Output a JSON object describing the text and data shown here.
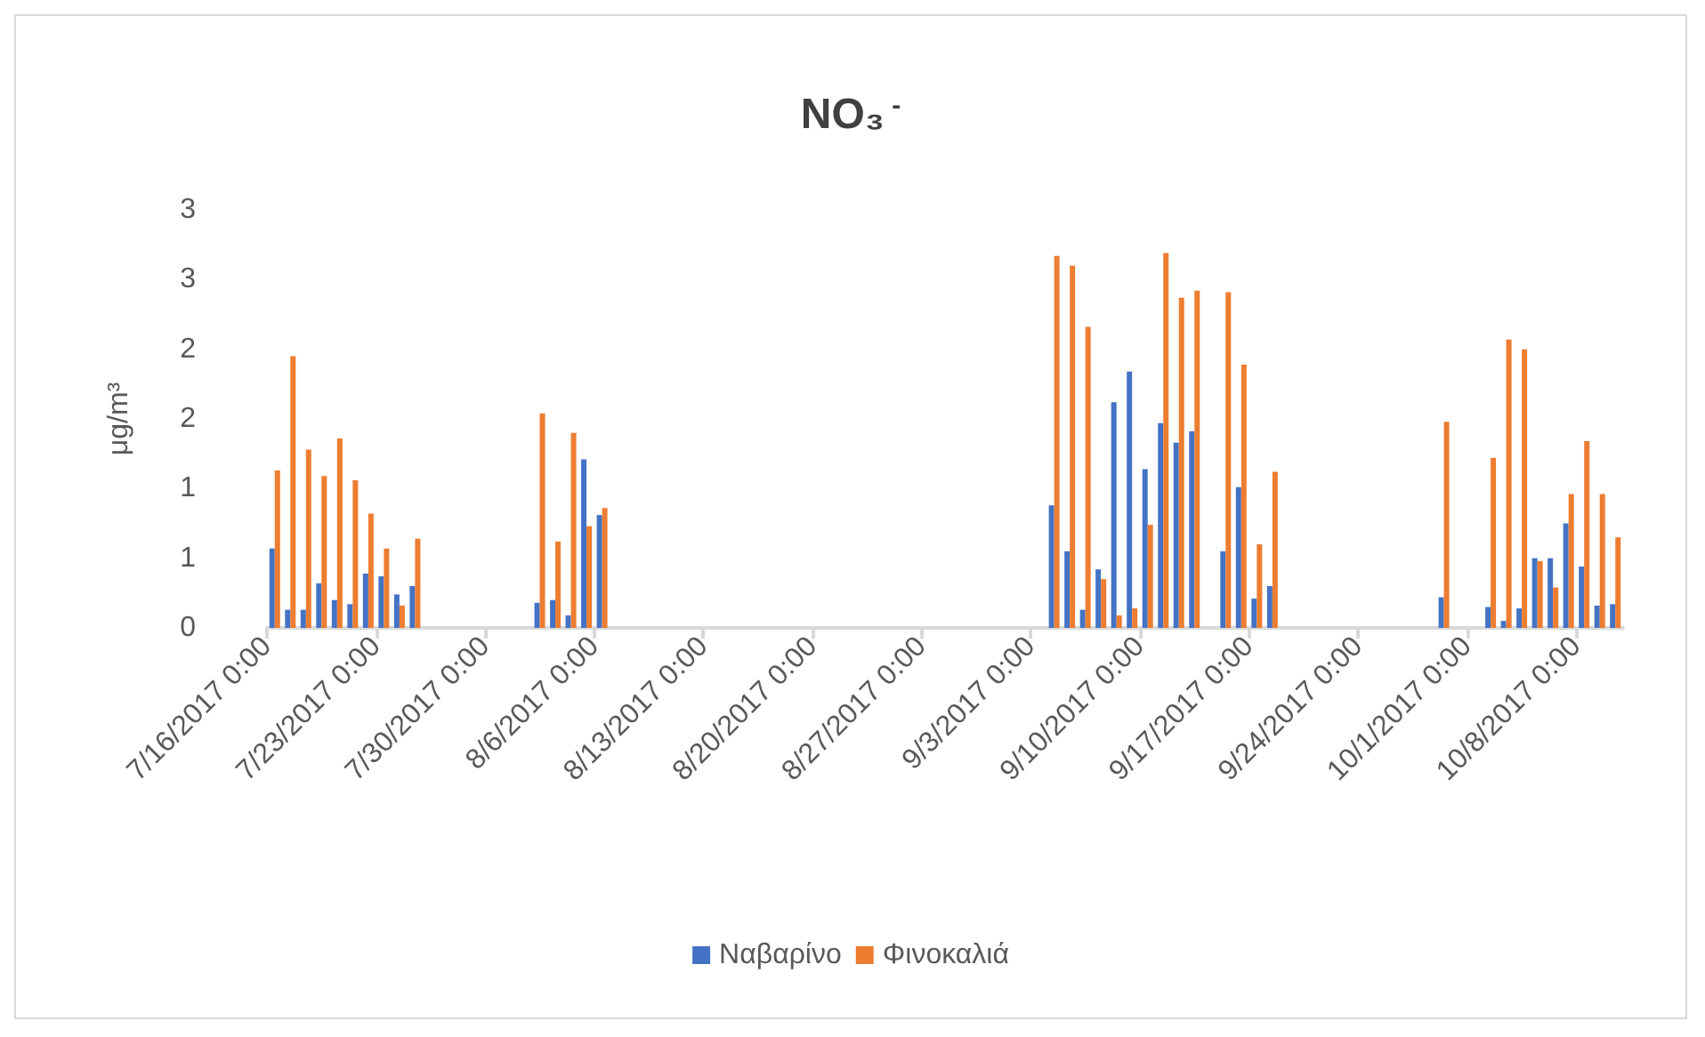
{
  "chart_data": {
    "type": "bar",
    "title": "NO₃$^{ -}$",
    "ylabel": "μg/m³",
    "x": [
      "2017-07-16T12:00",
      "2017-07-17T12:00",
      "2017-07-18T12:00",
      "2017-07-19T12:00",
      "2017-07-20T12:00",
      "2017-07-21T12:00",
      "2017-07-22T12:00",
      "2017-07-23T12:00",
      "2017-07-24T12:00",
      "2017-07-25T12:00",
      "2017-08-02T12:00",
      "2017-08-03T12:00",
      "2017-08-04T12:00",
      "2017-08-05T12:00",
      "2017-08-06T12:00",
      "2017-09-04T12:00",
      "2017-09-05T12:00",
      "2017-09-06T12:00",
      "2017-09-07T12:00",
      "2017-09-08T12:00",
      "2017-09-09T12:00",
      "2017-09-10T12:00",
      "2017-09-11T12:00",
      "2017-09-12T12:00",
      "2017-09-13T12:00",
      "2017-09-15T12:00",
      "2017-09-16T12:00",
      "2017-09-17T12:00",
      "2017-09-18T12:00",
      "2017-09-29T12:00",
      "2017-10-02T12:00",
      "2017-10-03T12:00",
      "2017-10-04T12:00",
      "2017-10-05T12:00",
      "2017-10-06T12:00",
      "2017-10-07T12:00",
      "2017-10-08T12:00",
      "2017-10-09T12:00",
      "2017-10-10T12:00"
    ],
    "series": [
      {
        "name": "Ναβαρίνο",
        "color": "#4472c4",
        "values": [
          0.57,
          0.13,
          0.13,
          0.32,
          0.2,
          0.17,
          0.39,
          0.37,
          0.24,
          0.3,
          0.18,
          0.2,
          0.09,
          1.21,
          0.81,
          0.88,
          0.55,
          0.13,
          0.42,
          1.62,
          1.84,
          1.14,
          1.47,
          1.33,
          1.41,
          0.55,
          1.01,
          0.21,
          0.3,
          0.22,
          0.15,
          0.05,
          0.14,
          0.5,
          0.5,
          0.75,
          0.44,
          0.16,
          0.17
        ]
      },
      {
        "name": "Φινοκαλιά",
        "color": "#ed7d31",
        "values": [
          1.13,
          1.95,
          1.28,
          1.09,
          1.36,
          1.06,
          0.82,
          0.57,
          0.16,
          0.64,
          1.54,
          0.62,
          1.4,
          0.73,
          0.86,
          2.67,
          2.6,
          2.16,
          0.35,
          0.09,
          0.14,
          0.74,
          2.69,
          2.37,
          2.42,
          2.41,
          1.89,
          0.6,
          1.12,
          1.48,
          1.22,
          2.07,
          2.0,
          0.48,
          0.29,
          0.96,
          1.34,
          0.96,
          0.65
        ]
      }
    ],
    "xlim": [
      "2017-07-16",
      "2017-10-11"
    ],
    "xticks": [
      {
        "value": "2017-07-16",
        "label": "7/16/2017 0:00"
      },
      {
        "value": "2017-07-23",
        "label": "7/23/2017 0:00"
      },
      {
        "value": "2017-07-30",
        "label": "7/30/2017 0:00"
      },
      {
        "value": "2017-08-06",
        "label": "8/6/2017 0:00"
      },
      {
        "value": "2017-08-13",
        "label": "8/13/2017 0:00"
      },
      {
        "value": "2017-08-20",
        "label": "8/20/2017 0:00"
      },
      {
        "value": "2017-08-27",
        "label": "8/27/2017 0:00"
      },
      {
        "value": "2017-09-03",
        "label": "9/3/2017 0:00"
      },
      {
        "value": "2017-09-10",
        "label": "9/10/2017 0:00"
      },
      {
        "value": "2017-09-17",
        "label": "9/17/2017 0:00"
      },
      {
        "value": "2017-09-24",
        "label": "9/24/2017 0:00"
      },
      {
        "value": "2017-10-01",
        "label": "10/1/2017 0:00"
      },
      {
        "value": "2017-10-08",
        "label": "10/8/2017 0:00"
      }
    ],
    "ylim": [
      0,
      3
    ],
    "yticks": [
      0,
      {
        "value": 0.5,
        "label": "1"
      },
      1,
      {
        "value": 1.5,
        "label": "2"
      },
      2,
      {
        "value": 2.5,
        "label": "3"
      },
      3
    ],
    "grid": false,
    "legend": "bottom"
  }
}
